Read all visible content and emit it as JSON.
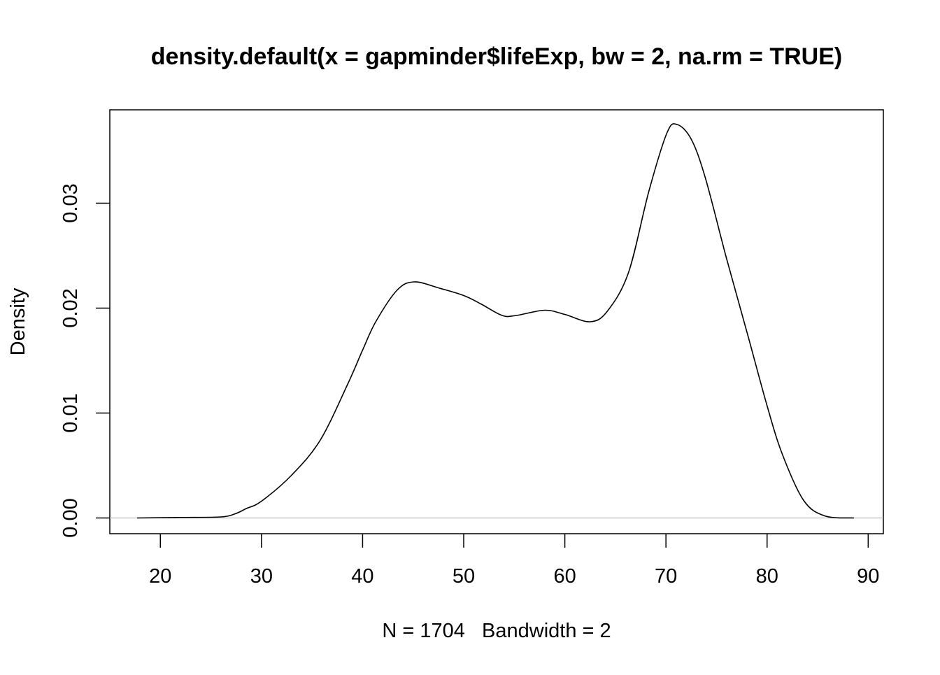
{
  "chart_data": {
    "type": "line",
    "title": "density.default(x = gapminder$lifeExp, bw = 2, na.rm = TRUE)",
    "xlabel": "N = 1704   Bandwidth = 2",
    "ylabel": "Density",
    "xlim": [
      15,
      91.5
    ],
    "ylim": [
      -0.0015,
      0.0389
    ],
    "x_ticks": [
      20,
      30,
      40,
      50,
      60,
      70,
      80,
      90
    ],
    "x_tick_labels": [
      "20",
      "30",
      "40",
      "50",
      "60",
      "70",
      "80",
      "90"
    ],
    "y_ticks": [
      0,
      0.01,
      0.02,
      0.03
    ],
    "y_tick_labels": [
      "0.00",
      "0.01",
      "0.02",
      "0.03"
    ],
    "grid": false,
    "baseline": {
      "y": 0,
      "color": "#bebebe"
    },
    "line_color": "#000000",
    "series": [
      {
        "x": [
          17.7,
          22,
          26,
          27.4,
          28.5,
          30,
          33,
          35.8,
          38.5,
          40,
          41.3,
          43.4,
          45.1,
          47.6,
          50,
          51.7,
          53.8,
          55.2,
          58,
          60,
          62.5,
          64.2,
          66.3,
          68.3,
          70.1,
          71.1,
          72.5,
          73.9,
          76,
          78.1,
          80,
          81.5,
          83.6,
          85.7,
          88.6
        ],
        "y": [
          0,
          5e-05,
          0.0001,
          0.0004,
          0.0009,
          0.0016,
          0.0041,
          0.0074,
          0.0127,
          0.016,
          0.0187,
          0.0217,
          0.0225,
          0.0219,
          0.0212,
          0.0204,
          0.0193,
          0.0193,
          0.0198,
          0.0194,
          0.0187,
          0.0197,
          0.0234,
          0.0311,
          0.0367,
          0.0375,
          0.0361,
          0.0324,
          0.0247,
          0.0174,
          0.0107,
          0.0061,
          0.0017,
          0.0002,
          0
        ]
      }
    ]
  }
}
